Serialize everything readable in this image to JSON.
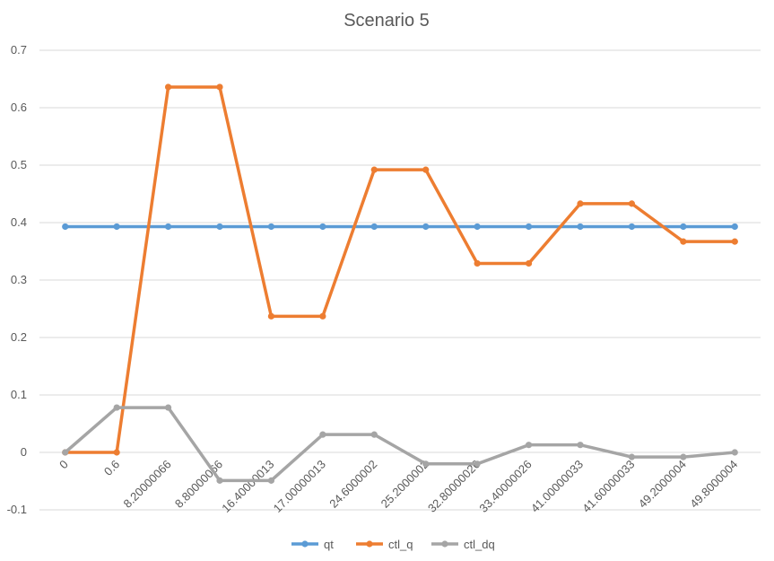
{
  "chart_data": {
    "type": "line",
    "title": "Scenario 5",
    "xlabel": "",
    "ylabel": "",
    "ylim": [
      -0.1,
      0.7
    ],
    "yticks": [
      -0.1,
      0,
      0.1,
      0.2,
      0.3,
      0.4,
      0.5,
      0.6,
      0.7
    ],
    "ytick_labels": [
      "-0.1",
      "0",
      "0.1",
      "0.2",
      "0.3",
      "0.4",
      "0.5",
      "0.6",
      "0.7"
    ],
    "grid": true,
    "legend_position": "bottom",
    "categories": [
      "0",
      "0.6",
      "8.20000066",
      "8.80000066",
      "16.40000013",
      "17.00000013",
      "24.6000002",
      "25.2000002",
      "32.80000026",
      "33.40000026",
      "41.00000033",
      "41.60000033",
      "49.2000004",
      "49.8000004"
    ],
    "series": [
      {
        "name": "qt",
        "color": "#5b9bd5",
        "values": [
          0.393,
          0.393,
          0.393,
          0.393,
          0.393,
          0.393,
          0.393,
          0.393,
          0.393,
          0.393,
          0.393,
          0.393,
          0.393,
          0.393
        ]
      },
      {
        "name": "ctl_q",
        "color": "#ed7d31",
        "values": [
          0,
          0,
          0.636,
          0.636,
          0.237,
          0.237,
          0.492,
          0.492,
          0.329,
          0.329,
          0.433,
          0.433,
          0.367,
          0.367
        ]
      },
      {
        "name": "ctl_dq",
        "color": "#a5a5a5",
        "values": [
          0,
          0.078,
          0.078,
          -0.049,
          -0.049,
          0.031,
          0.031,
          -0.02,
          -0.02,
          0.013,
          0.013,
          -0.008,
          -0.008,
          0
        ]
      }
    ]
  }
}
